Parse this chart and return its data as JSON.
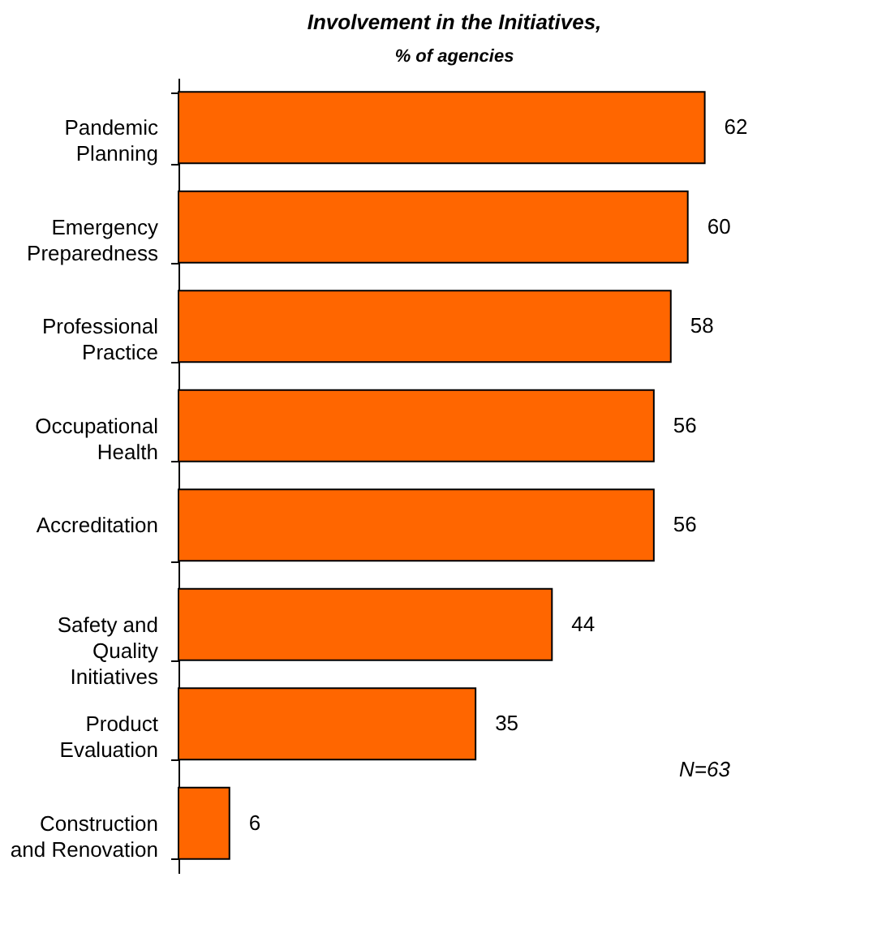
{
  "chart_data": {
    "type": "bar",
    "orientation": "horizontal",
    "title": "Involvement in the Initiatives,",
    "subtitle": "% of agencies",
    "categories": [
      "Pandemic\nPlanning",
      "Emergency\nPreparedness",
      "Professional\nPractice",
      "Occupational\nHealth",
      "Accreditation",
      "Safety and\nQuality\nInitiatives",
      "Product\nEvaluation",
      "Construction\nand Renovation"
    ],
    "values": [
      62,
      60,
      58,
      56,
      56,
      44,
      35,
      6
    ],
    "color": "#ff6600",
    "data_labels": true,
    "tick_labels": "y",
    "annotations": [
      "N=63"
    ]
  }
}
